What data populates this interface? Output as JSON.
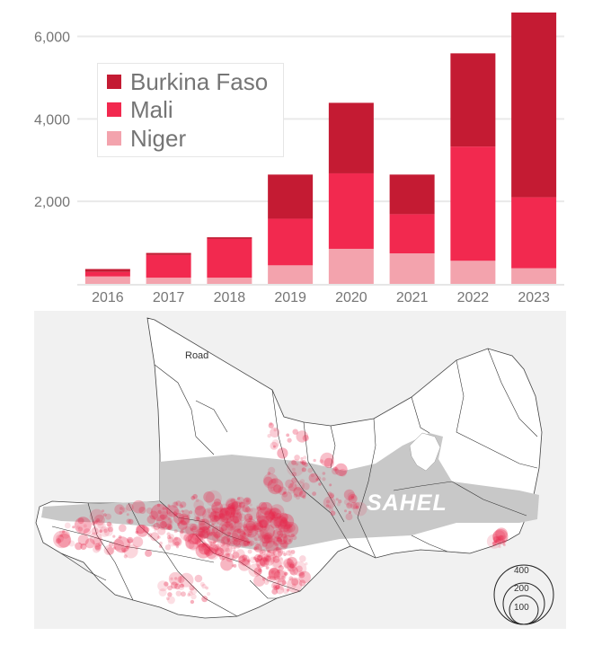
{
  "chart_data": {
    "type": "bar",
    "stacked": true,
    "categories": [
      "2016",
      "2017",
      "2018",
      "2019",
      "2020",
      "2021",
      "2022",
      "2023"
    ],
    "series": [
      {
        "name": "Niger",
        "values": [
          180,
          150,
          150,
          450,
          850,
          740,
          560,
          380
        ]
      },
      {
        "name": "Mali",
        "values": [
          110,
          550,
          940,
          1130,
          1830,
          950,
          2770,
          1720
        ]
      },
      {
        "name": "Burkina Faso",
        "values": [
          70,
          50,
          40,
          1070,
          1710,
          960,
          2260,
          4480
        ]
      }
    ],
    "colors": {
      "Niger": "#f3a3ad",
      "Mali": "#f2294f",
      "Burkina Faso": "#c41b33"
    },
    "yticks": [
      "2,000",
      "4,000",
      "6,000"
    ],
    "ytick_values": [
      2000,
      4000,
      6000
    ],
    "ylim": [
      0,
      6600
    ],
    "grid": true,
    "legend": {
      "placement": "top-left",
      "order": [
        "Burkina Faso",
        "Mali",
        "Niger"
      ]
    }
  },
  "map": {
    "road_label": "Road",
    "region_label": "SAHEL",
    "bubble_scale": [
      "400",
      "200",
      "100"
    ],
    "colors": {
      "land": "#ffffff",
      "sahel": "#c8c8c8",
      "bubble": "#e8284d",
      "background": "#f1f1f1"
    }
  }
}
